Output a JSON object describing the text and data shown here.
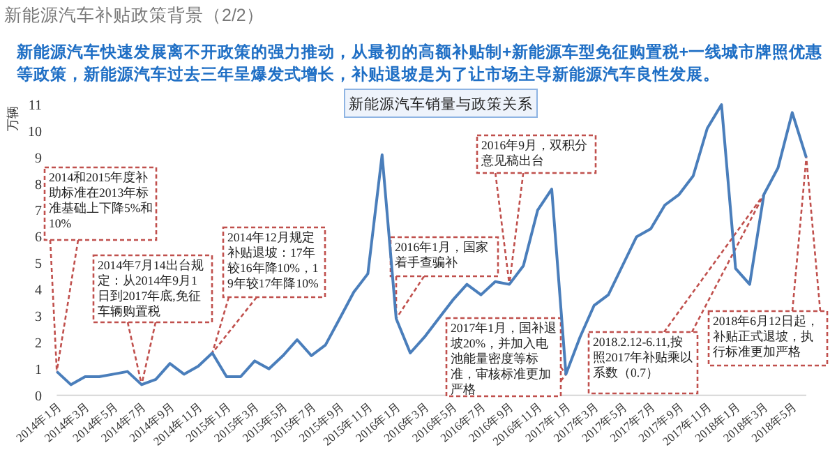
{
  "chart_data": {
    "type": "line",
    "title": "新能源汽车补贴政策背景（2/2）",
    "subtitle": "新能源汽车快速发展离不开政策的强力推动，从最初的高额补贴制+新能源车型免征购置税+一线城市牌照优惠等政策，新能源汽车过去三年呈爆发式增长，补贴退坡是为了让市场主导新能源汽车良性发展。",
    "ylabel": "万辆",
    "x": [
      "2014-01",
      "2014-02",
      "2014-03",
      "2014-04",
      "2014-05",
      "2014-06",
      "2014-07",
      "2014-08",
      "2014-09",
      "2014-10",
      "2014-11",
      "2014-12",
      "2015-01",
      "2015-02",
      "2015-03",
      "2015-04",
      "2015-05",
      "2015-06",
      "2015-07",
      "2015-08",
      "2015-09",
      "2015-10",
      "2015-11",
      "2015-12",
      "2016-01",
      "2016-02",
      "2016-03",
      "2016-04",
      "2016-05",
      "2016-06",
      "2016-07",
      "2016-08",
      "2016-09",
      "2016-10",
      "2016-11",
      "2016-12",
      "2017-01",
      "2017-02",
      "2017-03",
      "2017-04",
      "2017-05",
      "2017-06",
      "2017-07",
      "2017-08",
      "2017-09",
      "2017-10",
      "2017-11",
      "2017-12",
      "2018-01",
      "2018-02",
      "2018-03",
      "2018-04",
      "2018-05",
      "2018-06"
    ],
    "series": [
      {
        "color": "#4a7ebb",
        "values": [
          0.9,
          0.4,
          0.7,
          0.7,
          0.8,
          0.9,
          0.4,
          0.6,
          1.2,
          0.8,
          1.1,
          1.6,
          0.7,
          0.7,
          1.3,
          1.0,
          1.5,
          2.1,
          1.5,
          1.9,
          2.9,
          3.9,
          4.6,
          9.1,
          2.9,
          1.6,
          2.2,
          2.9,
          3.6,
          4.2,
          3.8,
          4.3,
          4.2,
          4.9,
          7.0,
          7.8,
          0.8,
          2.2,
          3.4,
          3.8,
          4.9,
          6.0,
          6.3,
          7.2,
          7.6,
          8.3,
          10.1,
          11.0,
          4.8,
          4.2,
          7.6,
          8.6,
          10.7,
          9.0
        ]
      }
    ],
    "xlim": [
      "2014-01",
      "2018-06"
    ],
    "xticks": [
      {
        "value": "2014-01",
        "label": "2014年1月"
      },
      {
        "value": "2014-03",
        "label": "2014年3月"
      },
      {
        "value": "2014-05",
        "label": "2014年5月"
      },
      {
        "value": "2014-07",
        "label": "2014年7月"
      },
      {
        "value": "2014-09",
        "label": "2014年9月"
      },
      {
        "value": "2014-11",
        "label": "2014年11月"
      },
      {
        "value": "2015-01",
        "label": "2015年1月"
      },
      {
        "value": "2015-03",
        "label": "2015年3月"
      },
      {
        "value": "2015-05",
        "label": "2015年5月"
      },
      {
        "value": "2015-07",
        "label": "2015年7月"
      },
      {
        "value": "2015-09",
        "label": "2015年9月"
      },
      {
        "value": "2015-11",
        "label": "2015年11月"
      },
      {
        "value": "2016-01",
        "label": "2016年1月"
      },
      {
        "value": "2016-03",
        "label": "2016年3月"
      },
      {
        "value": "2016-05",
        "label": "2016年5月"
      },
      {
        "value": "2016-07",
        "label": "2016年7月"
      },
      {
        "value": "2016-09",
        "label": "2016年9月"
      },
      {
        "value": "2016-11",
        "label": "2016年11月"
      },
      {
        "value": "2017-01",
        "label": "2017年1月"
      },
      {
        "value": "2017-03",
        "label": "2017年3月"
      },
      {
        "value": "2017-05",
        "label": "2017年5月"
      },
      {
        "value": "2017-07",
        "label": "2017年7月"
      },
      {
        "value": "2017-09",
        "label": "2017年9月"
      },
      {
        "value": "2017-11",
        "label": "2017年11月"
      },
      {
        "value": "2018-01",
        "label": "2018年1月"
      },
      {
        "value": "2018-03",
        "label": "2018年3月"
      },
      {
        "value": "2018-05",
        "label": "2018年5月"
      }
    ],
    "ylim": [
      0,
      11
    ],
    "yticks": [
      0,
      1,
      2,
      3,
      4,
      5,
      6,
      7,
      8,
      9,
      10,
      11
    ],
    "annotations": [
      "新能源汽车销量与政策关系",
      {
        "text": "2014和2015年度补助标准在2013年标准基础上下降5%和10%",
        "x": "2014-01",
        "y": 0.9
      },
      {
        "text": "2014年7月14出台规定：从2014年9月1日到2017年底,免征车辆购置税",
        "x": "2014-07",
        "y": 0.4
      },
      {
        "text": "2014年12月规定补贴退坡：17年较16年降10%，19年较17年降10%",
        "x": "2014-12",
        "y": 1.6
      },
      {
        "text": "2016年1月，国家着手查骗补",
        "x": "2016-01",
        "y": 2.9
      },
      {
        "text": "2016年9月，双积分意见稿出台",
        "x": "2016-09",
        "y": 4.2
      },
      {
        "text": "2017年1月，国补退坡20%，并加入电池能量密度等标准，审核标准更加严格",
        "x": "2017-01",
        "y": 0.8
      },
      {
        "text": "2018.2.12-6.11,按照2017年补贴乘以系数（0.7）",
        "x": "2018-03",
        "y": 7.6
      },
      {
        "text": "2018年6月12日起，补贴正式退坡，执行标准更加严格",
        "x": "2018-06",
        "y": 9.0
      }
    ]
  }
}
